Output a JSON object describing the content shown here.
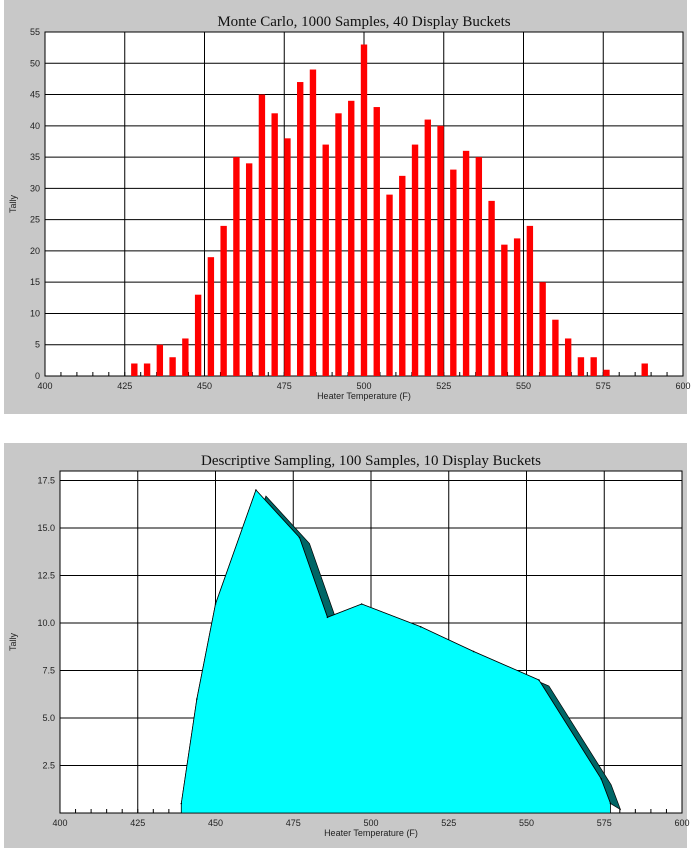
{
  "chart_data": [
    {
      "type": "bar",
      "title": "Monte Carlo, 1000 Samples, 40 Display Buckets",
      "xlabel": "Heater Temperature (F)",
      "ylabel": "Tally",
      "xlim": [
        400,
        600
      ],
      "ylim": [
        0,
        55
      ],
      "xticks": [
        "400",
        "425",
        "450",
        "475",
        "500",
        "525",
        "550",
        "575",
        "600"
      ],
      "yticks": [
        "0",
        "5",
        "10",
        "15",
        "20",
        "25",
        "30",
        "35",
        "40",
        "45",
        "50",
        "55"
      ],
      "grid": true,
      "color": "#ff0000",
      "x": [
        428,
        432,
        436,
        440,
        444,
        448,
        452,
        456,
        460,
        464,
        468,
        472,
        476,
        480,
        484,
        488,
        492,
        496,
        500,
        504,
        508,
        512,
        516,
        520,
        524,
        528,
        532,
        536,
        540,
        544,
        548,
        552,
        556,
        560,
        564,
        568,
        572,
        576,
        588
      ],
      "values": [
        2,
        2,
        5,
        3,
        6,
        13,
        19,
        24,
        35,
        34,
        45,
        42,
        38,
        47,
        49,
        37,
        42,
        44,
        53,
        43,
        29,
        32,
        37,
        41,
        40,
        33,
        36,
        35,
        28,
        21,
        22,
        24,
        15,
        9,
        6,
        3,
        3,
        1,
        2
      ]
    },
    {
      "type": "area",
      "title": "Descriptive Sampling, 100 Samples, 10 Display Buckets",
      "xlabel": "Heater Temperature (F)",
      "ylabel": "Tally",
      "xlim": [
        400,
        600
      ],
      "ylim": [
        0,
        18
      ],
      "xticks": [
        "400",
        "425",
        "450",
        "475",
        "500",
        "525",
        "550",
        "575",
        "600"
      ],
      "yticks": [
        "2.5",
        "5.0",
        "7.5",
        "10.0",
        "12.5",
        "15.0",
        "17.5"
      ],
      "grid": true,
      "color": "#00ffff",
      "shadow_color": "#006666",
      "x": [
        439,
        444,
        450,
        463,
        477,
        486,
        497,
        516,
        533,
        554,
        574,
        577
      ],
      "values": [
        0.5,
        6,
        11,
        17,
        14.5,
        10.3,
        11,
        9.8,
        8.5,
        7,
        1.8,
        0.5
      ]
    }
  ]
}
